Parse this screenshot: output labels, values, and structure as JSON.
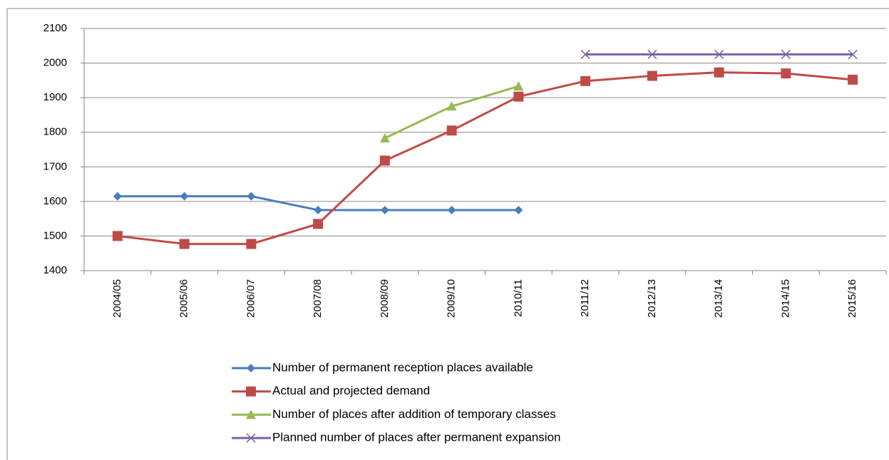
{
  "chart_data": {
    "type": "line",
    "categories": [
      "2004/05",
      "2005/06",
      "2006/07",
      "2007/08",
      "2008/09",
      "2009/10",
      "2010/11",
      "2011/12",
      "2012/13",
      "2013/14",
      "2014/15",
      "2015/16"
    ],
    "series": [
      {
        "name": "Number of permanent reception places available",
        "color": "#4a7ebb",
        "marker": "diamond",
        "values": [
          1615,
          1615,
          1615,
          1575,
          1575,
          1575,
          1575,
          null,
          null,
          null,
          null,
          null
        ]
      },
      {
        "name": "Actual and projected demand",
        "color": "#be4b48",
        "marker": "square",
        "values": [
          1500,
          1477,
          1477,
          1535,
          1718,
          1805,
          1903,
          1948,
          1963,
          1973,
          1970,
          1952
        ]
      },
      {
        "name": "Number of places after addition of temporary classes",
        "color": "#98b954",
        "marker": "triangle",
        "values": [
          null,
          null,
          null,
          null,
          1783,
          1875,
          1933,
          null,
          null,
          null,
          null,
          null
        ]
      },
      {
        "name": "Planned number of places after permanent expansion",
        "color": "#7d60a0",
        "marker": "x",
        "values": [
          null,
          null,
          null,
          null,
          null,
          null,
          null,
          2025,
          2025,
          2025,
          2025,
          2025
        ]
      }
    ],
    "ylim": [
      1400,
      2100
    ],
    "yticks": [
      1400,
      1500,
      1600,
      1700,
      1800,
      1900,
      2000,
      2100
    ],
    "grid": true,
    "legend": "bottom"
  }
}
